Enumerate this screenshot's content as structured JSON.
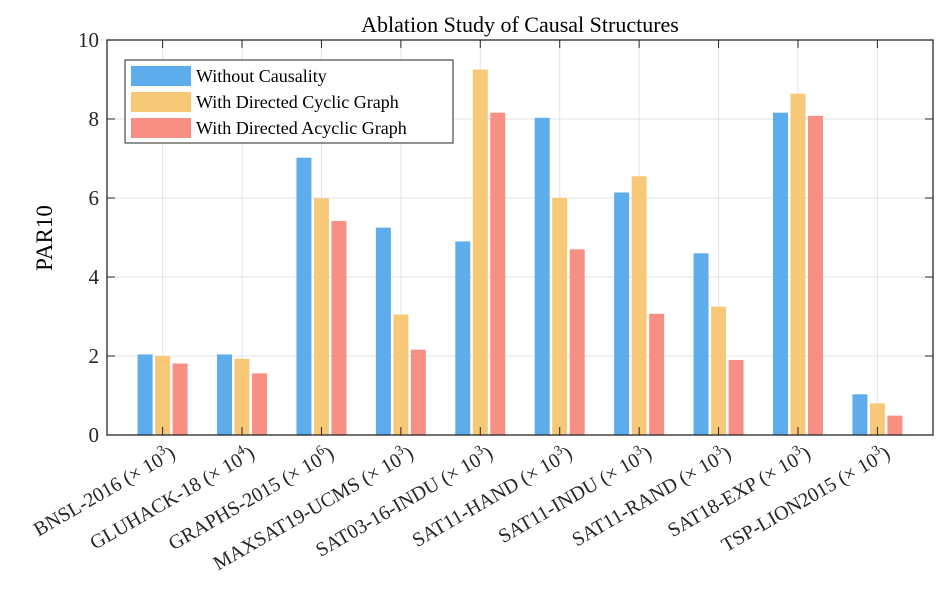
{
  "chart_data": {
    "type": "bar",
    "title": "Ablation Study of Causal Structures",
    "xlabel": "",
    "ylabel": "PAR10",
    "ylim": [
      0,
      10
    ],
    "yticks": [
      0,
      2,
      4,
      6,
      8,
      10
    ],
    "grid": true,
    "legend_position": "top-left",
    "categories": [
      {
        "name": "BNSL-2016",
        "exp": "3"
      },
      {
        "name": "GLUHACK-18",
        "exp": "4"
      },
      {
        "name": "GRAPHS-2015",
        "exp": "6"
      },
      {
        "name": "MAXSAT19-UCMS",
        "exp": "3"
      },
      {
        "name": "SAT03-16-INDU",
        "exp": "3"
      },
      {
        "name": "SAT11-HAND",
        "exp": "3"
      },
      {
        "name": "SAT11-INDU",
        "exp": "3"
      },
      {
        "name": "SAT11-RAND",
        "exp": "3"
      },
      {
        "name": "SAT18-EXP",
        "exp": "3"
      },
      {
        "name": "TSP-LION2015",
        "exp": "3"
      }
    ],
    "series": [
      {
        "name": "Without Causality",
        "color": "#5DADEC",
        "values": [
          2.04,
          2.04,
          7.02,
          5.25,
          4.9,
          8.03,
          6.14,
          4.6,
          8.16,
          1.03
        ]
      },
      {
        "name": "With Directed Cyclic Graph",
        "color": "#F7C878",
        "values": [
          2.0,
          1.93,
          5.99,
          3.05,
          9.25,
          6.0,
          6.55,
          3.25,
          8.64,
          0.8
        ]
      },
      {
        "name": "With Directed Acyclic Graph",
        "color": "#F78F85",
        "values": [
          1.81,
          1.56,
          5.42,
          2.16,
          8.16,
          4.7,
          3.07,
          1.9,
          8.08,
          0.49
        ]
      }
    ]
  }
}
